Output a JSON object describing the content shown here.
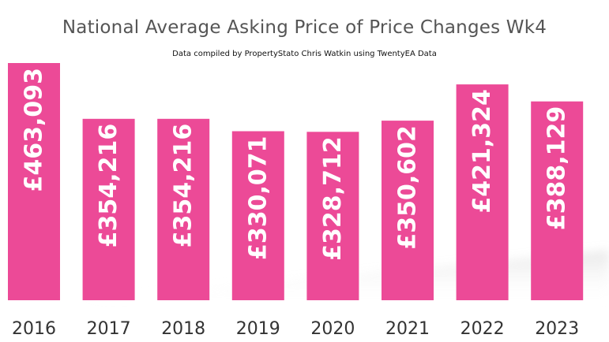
{
  "chart_data": {
    "type": "bar",
    "title": "National Average Asking Price of Price Changes Wk4",
    "subtitle": "Data compiled by PropertyStato Chris Watkin using TwentyEA Data",
    "categories": [
      "2016",
      "2017",
      "2018",
      "2019",
      "2020",
      "2021",
      "2022",
      "2023"
    ],
    "values": [
      463093,
      354216,
      354216,
      330071,
      328712,
      350602,
      421324,
      388129
    ],
    "data_labels": [
      "£463,093",
      "£354,216",
      "£354,216",
      "£330,071",
      "£328,712",
      "£350,602",
      "£421,324",
      "£388,129"
    ],
    "bar_color": "#ec4a97",
    "label_color": "#ffffff",
    "xlabel": "",
    "ylabel": "",
    "grid": false,
    "legend": "none"
  }
}
